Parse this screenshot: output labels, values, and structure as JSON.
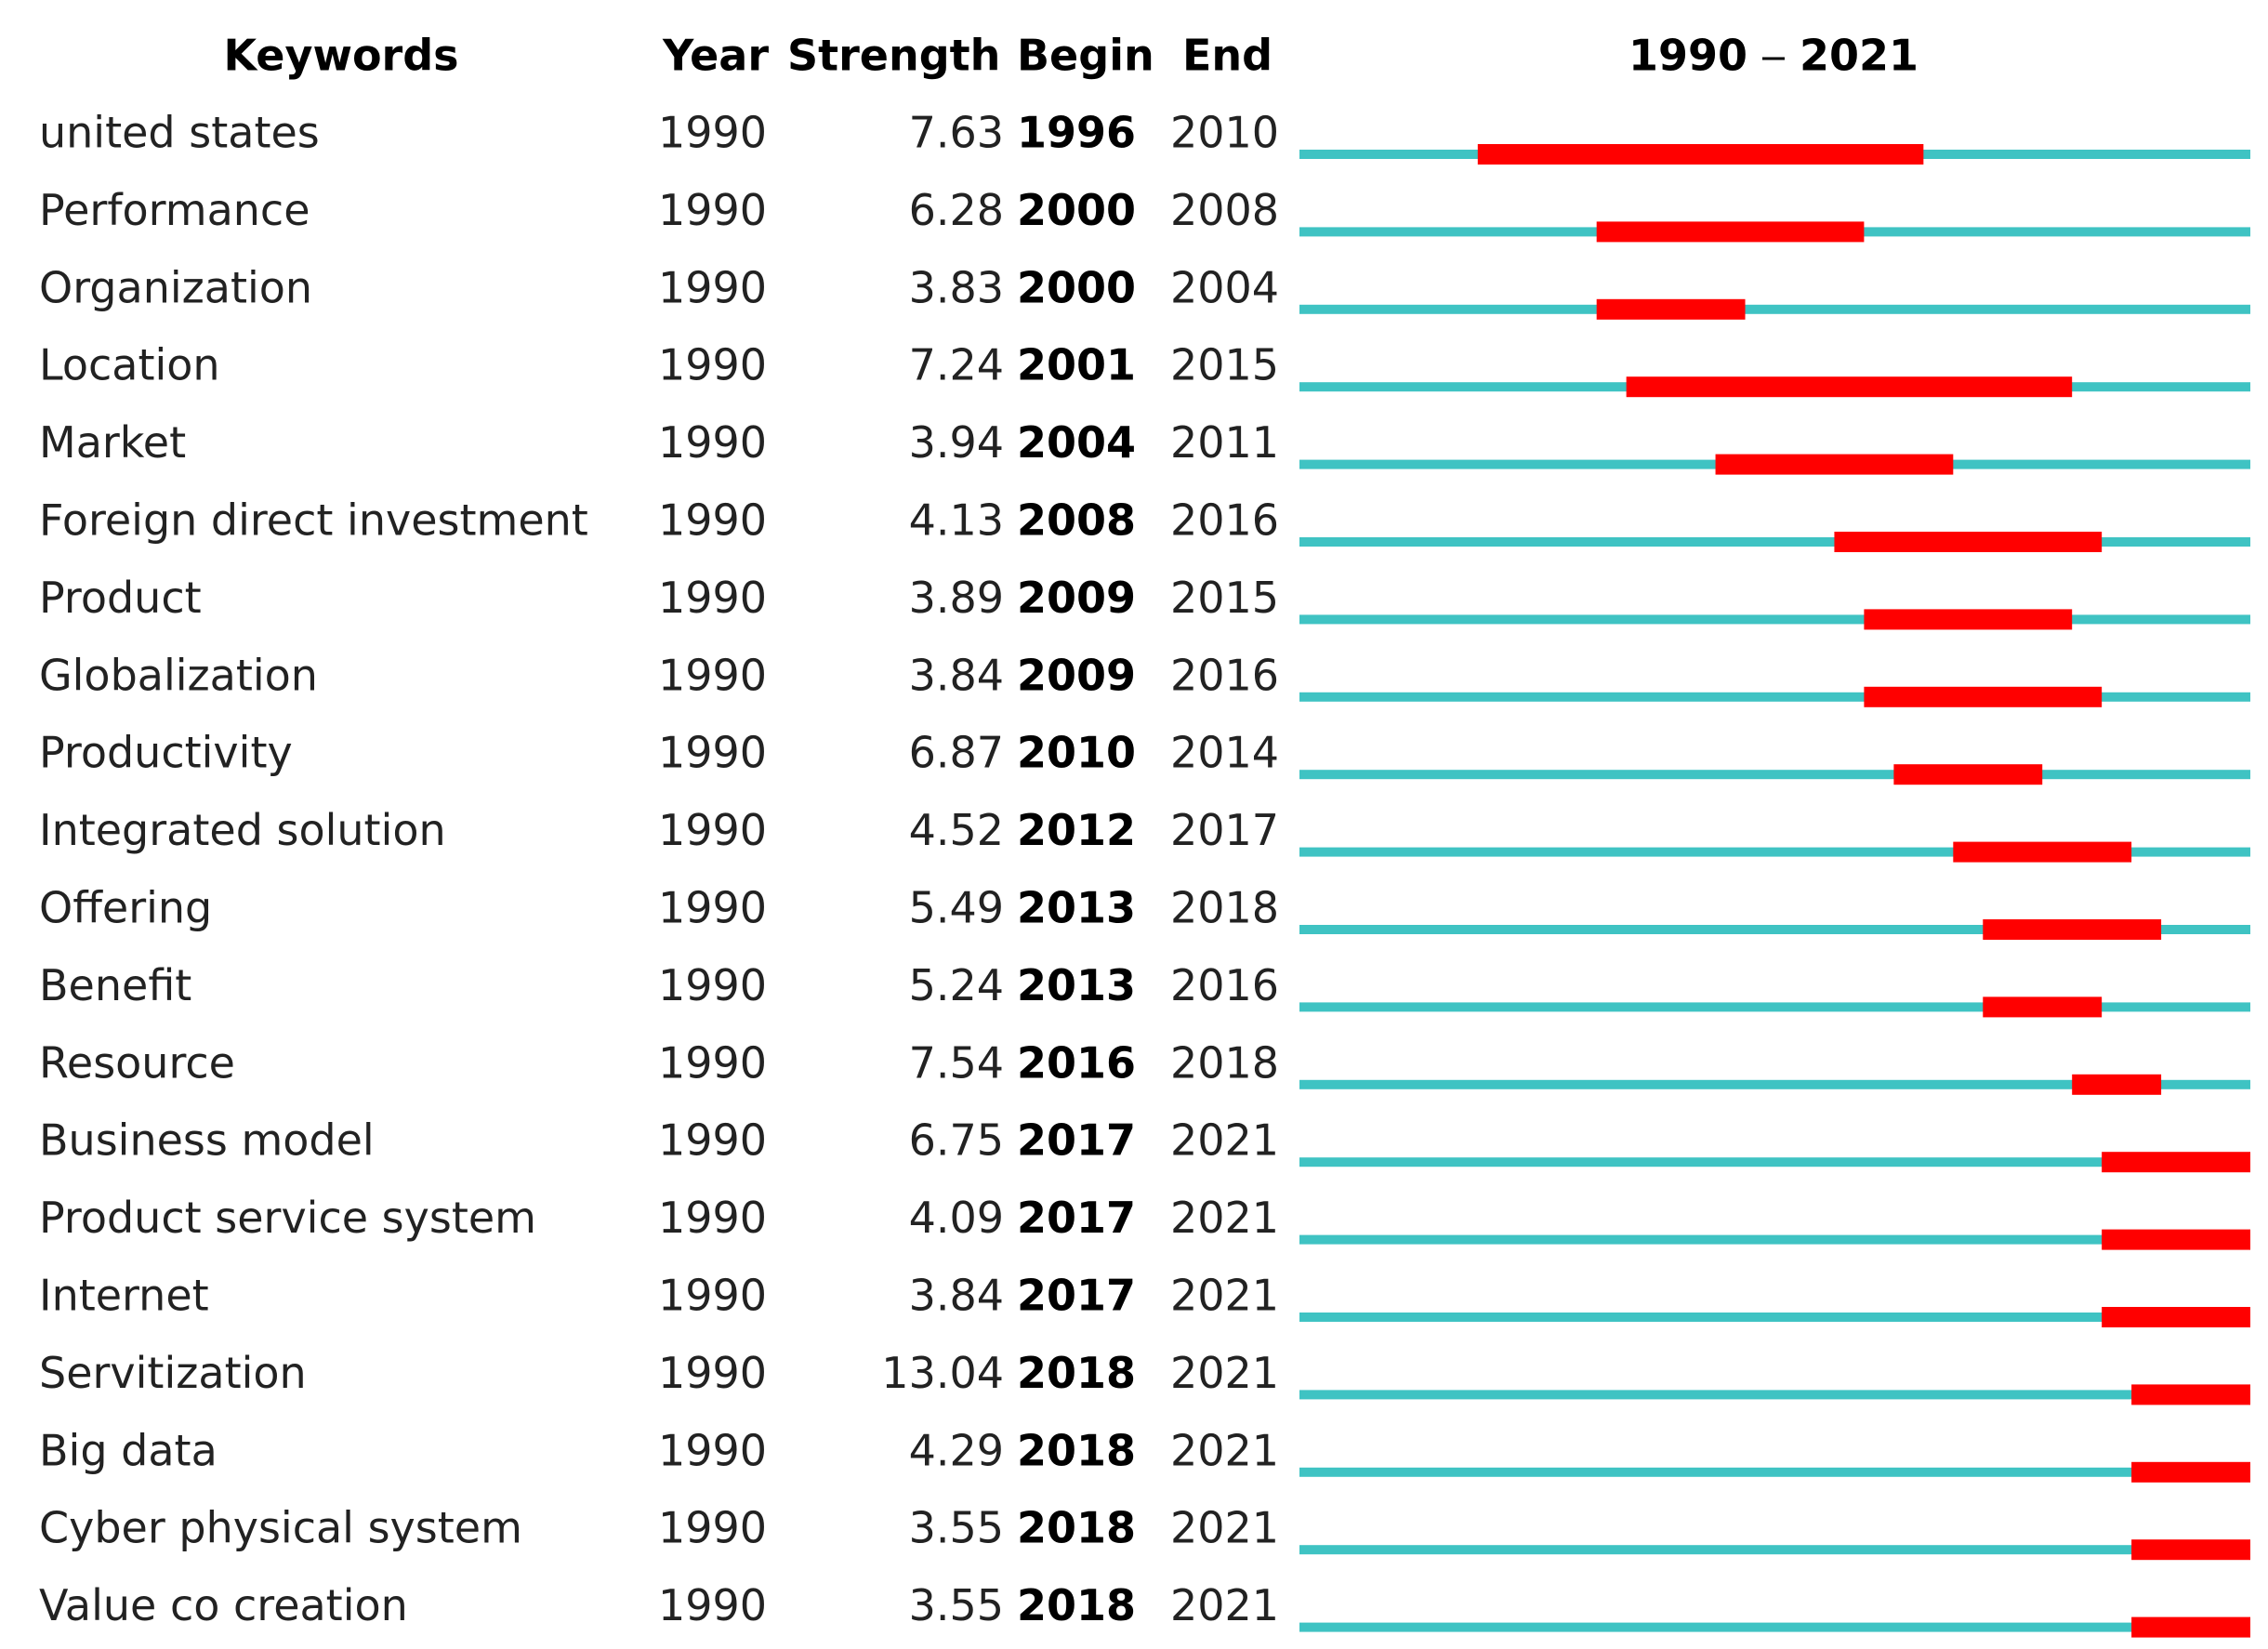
{
  "header": {
    "keywords": "Keywords",
    "year": "Year",
    "strength": "Strength",
    "begin": "Begin",
    "end": "End"
  },
  "timeline": {
    "start": 1990,
    "end": 2021
  },
  "rows": [
    {
      "keyword": "united states",
      "year": 1990,
      "strength": 7.63,
      "begin": 1996,
      "end": 2010
    },
    {
      "keyword": "Performance",
      "year": 1990,
      "strength": 6.28,
      "begin": 2000,
      "end": 2008
    },
    {
      "keyword": "Organization",
      "year": 1990,
      "strength": 3.83,
      "begin": 2000,
      "end": 2004
    },
    {
      "keyword": "Location",
      "year": 1990,
      "strength": 7.24,
      "begin": 2001,
      "end": 2015
    },
    {
      "keyword": "Market",
      "year": 1990,
      "strength": 3.94,
      "begin": 2004,
      "end": 2011
    },
    {
      "keyword": "Foreign direct investment",
      "year": 1990,
      "strength": 4.13,
      "begin": 2008,
      "end": 2016
    },
    {
      "keyword": "Product",
      "year": 1990,
      "strength": 3.89,
      "begin": 2009,
      "end": 2015
    },
    {
      "keyword": "Globalization",
      "year": 1990,
      "strength": 3.84,
      "begin": 2009,
      "end": 2016
    },
    {
      "keyword": "Productivity",
      "year": 1990,
      "strength": 6.87,
      "begin": 2010,
      "end": 2014
    },
    {
      "keyword": "Integrated solution",
      "year": 1990,
      "strength": 4.52,
      "begin": 2012,
      "end": 2017
    },
    {
      "keyword": "Offering",
      "year": 1990,
      "strength": 5.49,
      "begin": 2013,
      "end": 2018
    },
    {
      "keyword": "Benefit",
      "year": 1990,
      "strength": 5.24,
      "begin": 2013,
      "end": 2016
    },
    {
      "keyword": "Resource",
      "year": 1990,
      "strength": 7.54,
      "begin": 2016,
      "end": 2018
    },
    {
      "keyword": "Business model",
      "year": 1990,
      "strength": 6.75,
      "begin": 2017,
      "end": 2021
    },
    {
      "keyword": "Product service system",
      "year": 1990,
      "strength": 4.09,
      "begin": 2017,
      "end": 2021
    },
    {
      "keyword": "Internet",
      "year": 1990,
      "strength": 3.84,
      "begin": 2017,
      "end": 2021
    },
    {
      "keyword": "Servitization",
      "year": 1990,
      "strength": 13.04,
      "begin": 2018,
      "end": 2021
    },
    {
      "keyword": "Big data",
      "year": 1990,
      "strength": 4.29,
      "begin": 2018,
      "end": 2021
    },
    {
      "keyword": "Cyber physical system",
      "year": 1990,
      "strength": 3.55,
      "begin": 2018,
      "end": 2021
    },
    {
      "keyword": "Value co creation",
      "year": 1990,
      "strength": 3.55,
      "begin": 2018,
      "end": 2021
    }
  ]
}
